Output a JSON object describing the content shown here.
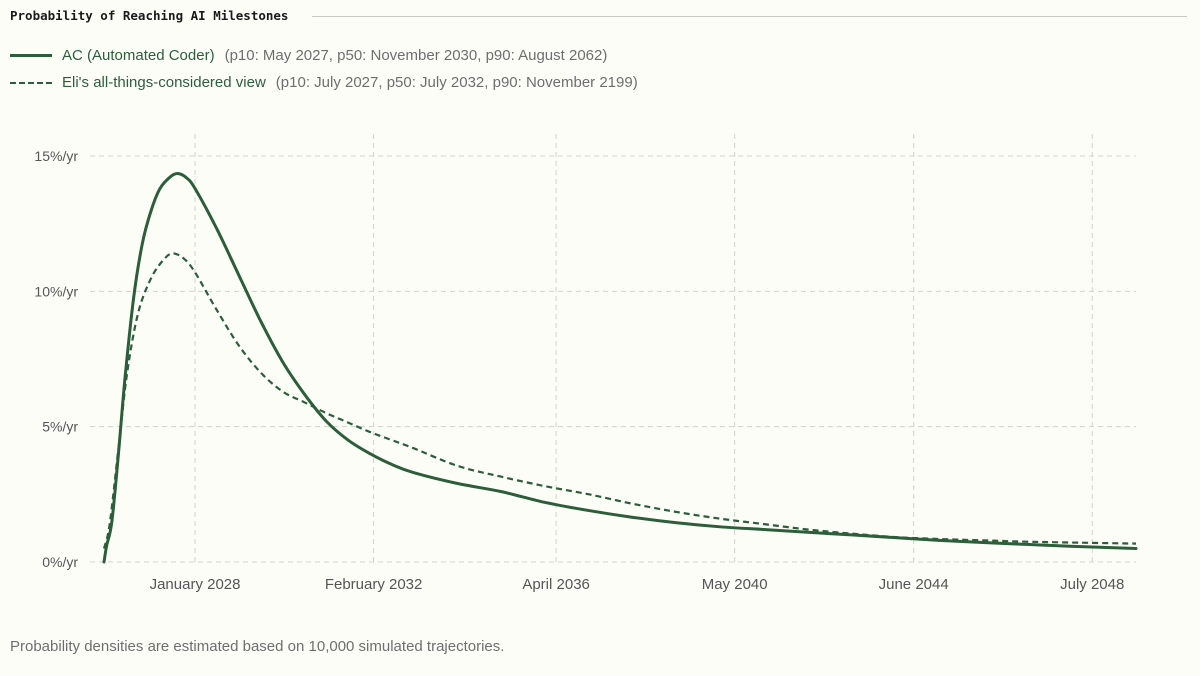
{
  "chart_data": {
    "type": "line",
    "title": "Probability of Reaching AI Milestones",
    "xlabel": "",
    "ylabel": "",
    "x_unit": "year",
    "xlim": [
      2025.6,
      2049.5
    ],
    "ylim": [
      0,
      15
    ],
    "x_ticks": [
      {
        "value": 2028.0,
        "label": "January 2028"
      },
      {
        "value": 2032.08,
        "label": "February 2032"
      },
      {
        "value": 2036.25,
        "label": "April 2036"
      },
      {
        "value": 2040.33,
        "label": "May 2040"
      },
      {
        "value": 2044.42,
        "label": "June 2044"
      },
      {
        "value": 2048.5,
        "label": "July 2048"
      }
    ],
    "y_ticks": [
      {
        "value": 0,
        "label": "0%/yr"
      },
      {
        "value": 5,
        "label": "5%/yr"
      },
      {
        "value": 10,
        "label": "10%/yr"
      },
      {
        "value": 15,
        "label": "15%/yr"
      }
    ],
    "grid": true,
    "legend_position": "top-left",
    "series": [
      {
        "name": "AC (Automated Coder)",
        "detail": "(p10: May 2027, p50: November 2030, p90: August 2062)",
        "style": "solid",
        "color": "#2c5e3a",
        "points": [
          [
            2025.92,
            0
          ],
          [
            2025.98,
            0.6
          ],
          [
            2026.1,
            1.5
          ],
          [
            2026.25,
            4.0
          ],
          [
            2026.4,
            6.8
          ],
          [
            2026.6,
            9.8
          ],
          [
            2026.8,
            11.8
          ],
          [
            2027.0,
            13.0
          ],
          [
            2027.2,
            13.8
          ],
          [
            2027.45,
            14.25
          ],
          [
            2027.62,
            14.35
          ],
          [
            2027.8,
            14.2
          ],
          [
            2028.0,
            13.8
          ],
          [
            2028.5,
            12.3
          ],
          [
            2029.0,
            10.6
          ],
          [
            2029.5,
            8.9
          ],
          [
            2030.0,
            7.4
          ],
          [
            2030.5,
            6.2
          ],
          [
            2031.0,
            5.2
          ],
          [
            2031.5,
            4.5
          ],
          [
            2032.0,
            4.0
          ],
          [
            2032.5,
            3.6
          ],
          [
            2033.0,
            3.3
          ],
          [
            2034.0,
            2.9
          ],
          [
            2035.0,
            2.6
          ],
          [
            2036.0,
            2.2
          ],
          [
            2037.0,
            1.9
          ],
          [
            2038.0,
            1.65
          ],
          [
            2039.0,
            1.45
          ],
          [
            2040.0,
            1.3
          ],
          [
            2041.0,
            1.2
          ],
          [
            2042.0,
            1.1
          ],
          [
            2043.0,
            1.0
          ],
          [
            2044.0,
            0.9
          ],
          [
            2045.0,
            0.8
          ],
          [
            2046.0,
            0.72
          ],
          [
            2047.0,
            0.65
          ],
          [
            2048.0,
            0.58
          ],
          [
            2049.5,
            0.5
          ]
        ]
      },
      {
        "name": "Eli's all-things-considered view",
        "detail": "(p10: July 2027, p50: July 2032, p90: November 2199)",
        "style": "dashed",
        "color": "#2c5e3a",
        "points": [
          [
            2025.92,
            0.5
          ],
          [
            2026.05,
            1.4
          ],
          [
            2026.25,
            4.2
          ],
          [
            2026.45,
            7.0
          ],
          [
            2026.7,
            9.2
          ],
          [
            2027.0,
            10.5
          ],
          [
            2027.3,
            11.2
          ],
          [
            2027.5,
            11.4
          ],
          [
            2027.75,
            11.2
          ],
          [
            2028.0,
            10.7
          ],
          [
            2028.5,
            9.3
          ],
          [
            2029.0,
            8.0
          ],
          [
            2029.5,
            7.0
          ],
          [
            2030.0,
            6.3
          ],
          [
            2030.5,
            5.9
          ],
          [
            2031.0,
            5.5
          ],
          [
            2031.5,
            5.15
          ],
          [
            2032.0,
            4.8
          ],
          [
            2032.5,
            4.5
          ],
          [
            2033.0,
            4.2
          ],
          [
            2034.0,
            3.55
          ],
          [
            2035.0,
            3.15
          ],
          [
            2036.0,
            2.8
          ],
          [
            2037.0,
            2.5
          ],
          [
            2038.0,
            2.15
          ],
          [
            2039.0,
            1.85
          ],
          [
            2040.0,
            1.6
          ],
          [
            2041.0,
            1.4
          ],
          [
            2042.0,
            1.2
          ],
          [
            2043.0,
            1.05
          ],
          [
            2044.0,
            0.92
          ],
          [
            2045.0,
            0.85
          ],
          [
            2046.0,
            0.8
          ],
          [
            2047.0,
            0.75
          ],
          [
            2048.0,
            0.72
          ],
          [
            2049.5,
            0.68
          ]
        ]
      }
    ],
    "footnote": "Probability densities are estimated based on 10,000 simulated trajectories."
  }
}
